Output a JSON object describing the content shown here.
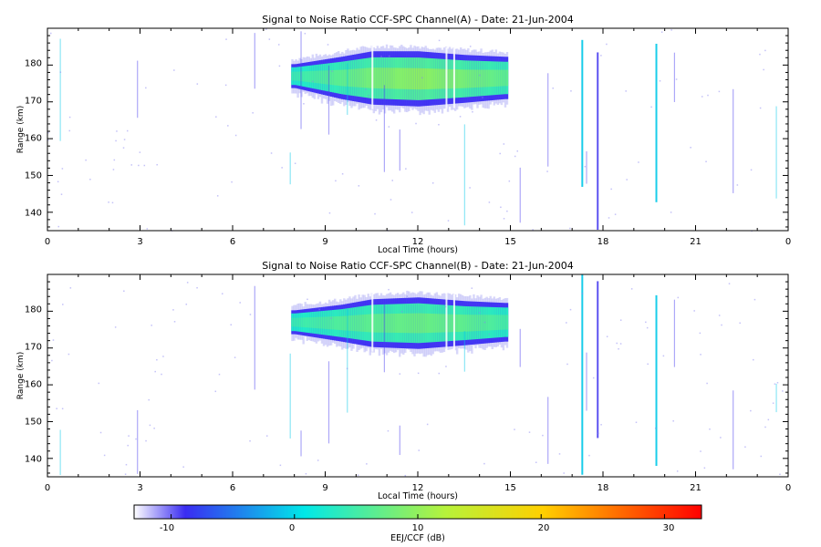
{
  "chart_data": [
    {
      "type": "heatmap",
      "title": "Signal to Noise Ratio CCF-SPC Channel(A) - Date: 21-Jun-2004",
      "xlabel": "Local Time (hours)",
      "ylabel": "Range (km)",
      "x_ticks": [
        "0",
        "3",
        "6",
        "9",
        "12",
        "15",
        "18",
        "21",
        "0"
      ],
      "y_ticks": [
        "140",
        "150",
        "160",
        "170",
        "180"
      ],
      "xlim": [
        0,
        24
      ],
      "ylim": [
        135,
        190
      ],
      "echo_layer": {
        "start_hour": 7.9,
        "end_hour": 14.9,
        "colorbar_units": "dB",
        "samples": [
          {
            "hour": 8.0,
            "top_km": 180,
            "bottom_km": 174,
            "peak_db": 6
          },
          {
            "hour": 9.5,
            "top_km": 182,
            "bottom_km": 171,
            "peak_db": 9
          },
          {
            "hour": 10.5,
            "top_km": 183.5,
            "bottom_km": 169.5,
            "peak_db": 11
          },
          {
            "hour": 12.0,
            "top_km": 183.5,
            "bottom_km": 169,
            "peak_db": 13
          },
          {
            "hour": 13.5,
            "top_km": 182.5,
            "bottom_km": 170,
            "peak_db": 11
          },
          {
            "hour": 14.8,
            "top_km": 182,
            "bottom_km": 171,
            "peak_db": 9
          }
        ]
      }
    },
    {
      "type": "heatmap",
      "title": "Signal to Noise Ratio CCF-SPC Channel(B) - Date: 21-Jun-2004",
      "xlabel": "Local Time (hours)",
      "ylabel": "Range (km)",
      "x_ticks": [
        "0",
        "3",
        "6",
        "9",
        "12",
        "15",
        "18",
        "21",
        "0"
      ],
      "y_ticks": [
        "140",
        "150",
        "160",
        "170",
        "180"
      ],
      "xlim": [
        0,
        24
      ],
      "ylim": [
        135,
        190
      ],
      "echo_layer": {
        "start_hour": 7.9,
        "end_hour": 14.9,
        "colorbar_units": "dB",
        "samples": [
          {
            "hour": 8.0,
            "top_km": 180,
            "bottom_km": 174,
            "peak_db": 6
          },
          {
            "hour": 9.5,
            "top_km": 181.5,
            "bottom_km": 172,
            "peak_db": 8
          },
          {
            "hour": 10.5,
            "top_km": 183,
            "bottom_km": 170.5,
            "peak_db": 9
          },
          {
            "hour": 12.0,
            "top_km": 183.5,
            "bottom_km": 170,
            "peak_db": 10
          },
          {
            "hour": 13.5,
            "top_km": 182.5,
            "bottom_km": 171,
            "peak_db": 9
          },
          {
            "hour": 14.8,
            "top_km": 182,
            "bottom_km": 172,
            "peak_db": 7
          }
        ]
      }
    }
  ],
  "colorbar": {
    "label": "EEJ/CCF (dB)",
    "range": [
      -13,
      33
    ],
    "ticks": [
      "-10",
      "0",
      "10",
      "20",
      "30"
    ],
    "tick_values": [
      -10,
      0,
      10,
      20,
      30
    ],
    "colors": [
      "#ffffff",
      "#3a2cf2",
      "#00e8e8",
      "#ffef00",
      "#ff0000"
    ]
  }
}
